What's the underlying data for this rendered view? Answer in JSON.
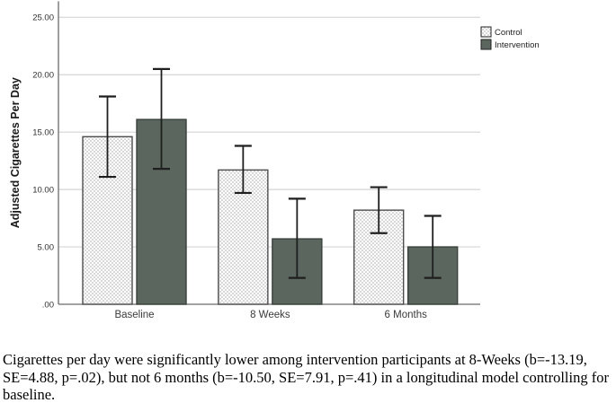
{
  "figure": {
    "caption": "Cigarettes per day were significantly lower among intervention participants at 8-Weeks (b=-13.19, SE=4.88, p=.02), but not 6 months (b=-10.50, SE=7.91, p=.41) in a longitudinal model controlling for baseline."
  },
  "chart_data": {
    "type": "bar",
    "title": "",
    "xlabel": "",
    "ylabel": "Adjusted Cigarettes Per Day",
    "categories": [
      "Baseline",
      "8 Weeks",
      "6 Months"
    ],
    "series": [
      {
        "name": "Control",
        "values": [
          14.6,
          11.7,
          8.2
        ],
        "error_low": [
          11.1,
          9.7,
          6.2
        ],
        "error_high": [
          18.1,
          13.8,
          10.2
        ],
        "fill_style": "dotted-pattern"
      },
      {
        "name": "Intervention",
        "values": [
          16.1,
          5.7,
          5.0
        ],
        "error_low": [
          11.8,
          2.3,
          2.3
        ],
        "error_high": [
          20.5,
          9.2,
          7.7
        ],
        "fill_style": "solid"
      }
    ],
    "yticks": [
      {
        "label": ".00",
        "value": 0
      },
      {
        "label": "5.00",
        "value": 5
      },
      {
        "label": "10.00",
        "value": 10
      },
      {
        "label": "15.00",
        "value": 15
      },
      {
        "label": "20.00",
        "value": 20
      },
      {
        "label": "25.00",
        "value": 25
      }
    ],
    "ylim": [
      0,
      26.4
    ],
    "grid": true,
    "legend_position": "top-right",
    "error_bars": true,
    "colors": {
      "control_pattern_dot": "#d8d8d8",
      "control_pattern_bg": "#ffffff",
      "control_border": "#4d4d4d",
      "intervention_fill": "#5a665e",
      "intervention_border": "#39413b",
      "gridline": "#d4d4d4",
      "axis": "#6b6b6b",
      "error_bar": "#1f1f1f",
      "tick_label": "#2e2e2e",
      "category_label": "#3a3a3a",
      "legend_label": "#222222",
      "axis_title": "#1a1a1a"
    }
  }
}
